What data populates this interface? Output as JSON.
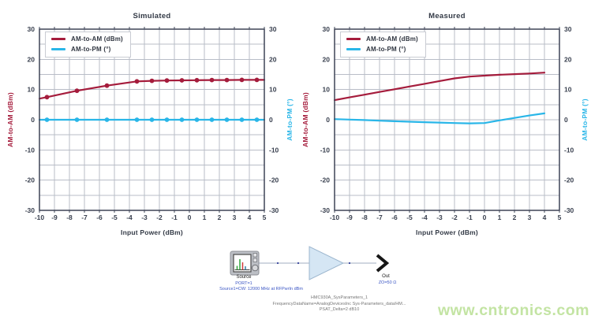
{
  "watermark": {
    "text": "www.cntronics.com",
    "color": "#c3e4a3"
  },
  "colors": {
    "am_to_am": "#a51c3c",
    "am_to_pm": "#29b6e8",
    "axis_text": "#39404f",
    "grid": "#b9bdc7",
    "border": "#3e4457",
    "title_text": "#333a46",
    "schematic_blue": "#3a55c4",
    "schematic_gray": "#777777",
    "amp_fill": "#d5e6f4",
    "amp_stroke": "#9cb6ce"
  },
  "chart_data": [
    {
      "type": "line",
      "title": "Simulated",
      "xlabel": "Input Power (dBm)",
      "ylabel_left": "AM-to-AM (dBm)",
      "ylabel_right": "AM-to-PM (°)",
      "xlim": [
        -10,
        5
      ],
      "ylim": [
        -30,
        30
      ],
      "x_grid_step": 1,
      "y_grid_step": 5,
      "x_tick_labels": [
        "-10",
        "-9",
        "-8",
        "-7",
        "-6",
        "-5",
        "-4",
        "-3",
        "-2",
        "-1",
        "0",
        "1",
        "2",
        "3",
        "4",
        "5"
      ],
      "y_tick_labels": [
        "30",
        "20",
        "10",
        "0",
        "-10",
        "-20",
        "-30"
      ],
      "grid": true,
      "legend_position": "top-left",
      "series": [
        {
          "name": "AM-to-AM (dBm)",
          "color": "#a51c3c",
          "axis": "left",
          "x": [
            -10,
            -9.5,
            -7.5,
            -5.5,
            -3.5,
            -2.5,
            -1.5,
            -0.5,
            0.5,
            1.5,
            2.5,
            3.5,
            4.5,
            5
          ],
          "y": [
            7.0,
            7.5,
            9.6,
            11.3,
            12.7,
            12.9,
            13.0,
            13.05,
            13.1,
            13.15,
            13.15,
            13.2,
            13.2,
            13.2
          ],
          "marker_x": [
            -9.5,
            -7.5,
            -5.5,
            -3.5,
            -2.5,
            -1.5,
            -0.5,
            0.5,
            1.5,
            2.5,
            3.5,
            4.5
          ],
          "marker_y": [
            7.5,
            9.6,
            11.3,
            12.7,
            12.9,
            13.0,
            13.05,
            13.1,
            13.15,
            13.15,
            13.2,
            13.2
          ]
        },
        {
          "name": "AM-to-PM (°)",
          "color": "#29b6e8",
          "axis": "right",
          "x": [
            -10,
            5
          ],
          "y": [
            0,
            0
          ],
          "marker_x": [
            -9.5,
            -7.5,
            -5.5,
            -3.5,
            -2.5,
            -1.5,
            -0.5,
            0.5,
            1.5,
            2.5,
            3.5,
            4.5
          ],
          "marker_y": [
            0,
            0,
            0,
            0,
            0,
            0,
            0,
            0,
            0,
            0,
            0,
            0
          ]
        }
      ]
    },
    {
      "type": "line",
      "title": "Measured",
      "xlabel": "Input Power (dBm)",
      "ylabel_left": "AM-to-AM (dBm)",
      "ylabel_right": "AM-to-PM (°)",
      "xlim": [
        -10,
        5
      ],
      "ylim": [
        -30,
        30
      ],
      "x_grid_step": 1,
      "y_grid_step": 5,
      "x_tick_labels": [
        "-10",
        "-9",
        "-8",
        "-7",
        "-6",
        "-5",
        "-4",
        "-3",
        "-2",
        "-1",
        "0",
        "1",
        "2",
        "3",
        "4",
        "5"
      ],
      "y_tick_labels": [
        "30",
        "20",
        "10",
        "0",
        "-10",
        "-20",
        "-30"
      ],
      "grid": true,
      "legend_position": "top-left",
      "series": [
        {
          "name": "AM-to-AM (dBm)",
          "color": "#a51c3c",
          "axis": "left",
          "x": [
            -10,
            -9,
            -8,
            -7,
            -6,
            -5,
            -4,
            -3,
            -2,
            -1,
            0,
            1,
            2,
            3,
            4
          ],
          "y": [
            6.5,
            7.4,
            8.3,
            9.2,
            10.1,
            11.0,
            11.9,
            12.8,
            13.7,
            14.3,
            14.6,
            14.9,
            15.1,
            15.3,
            15.6
          ],
          "marker_x": [],
          "marker_y": []
        },
        {
          "name": "AM-to-PM (°)",
          "color": "#29b6e8",
          "axis": "right",
          "x": [
            -10,
            -9,
            -8,
            -7,
            -6,
            -5,
            -4,
            -3,
            -2,
            -1,
            0,
            1,
            2,
            3,
            4
          ],
          "y": [
            0.2,
            0.05,
            -0.1,
            -0.3,
            -0.5,
            -0.65,
            -0.8,
            -0.95,
            -1.1,
            -1.2,
            -1.1,
            -0.2,
            0.6,
            1.4,
            2.1
          ],
          "marker_x": [],
          "marker_y": []
        }
      ]
    }
  ],
  "schematic": {
    "source_label": "Source",
    "source_port": "PORT=1",
    "source_param": "Source1=CW: 12000 MHz at RFPwrIn dBm",
    "component_name": "HMC930A_SysParameters_1",
    "component_param1": "FrequencyDataName=AnalogDevicesInc Sys-Parameters_data/HM...",
    "component_param2": "PSAT_Delta=2 dB10",
    "out_label": "Out",
    "out_impedance": "ZO=50 Ω"
  }
}
